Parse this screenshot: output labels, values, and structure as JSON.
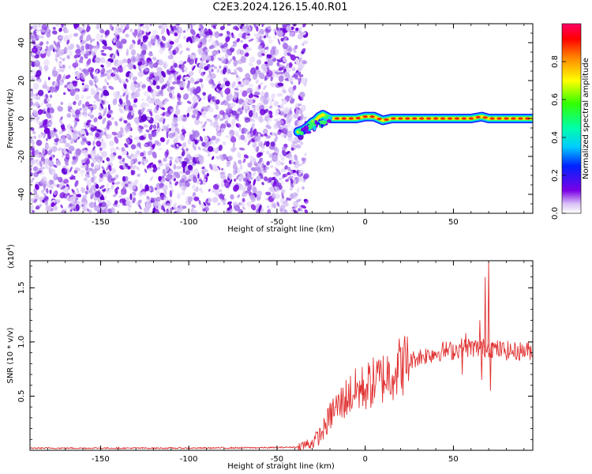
{
  "title": "C2E3.2024.126.15.40.R01",
  "chart_data": [
    {
      "type": "heatmap",
      "xlabel": "Height of straight line (km)",
      "ylabel": "Frequency (Hz)",
      "xlim": [
        -190,
        95
      ],
      "ylim": [
        -50,
        50
      ],
      "xticks": [
        -150,
        -100,
        -50,
        0,
        50
      ],
      "yticks": [
        -40,
        -20,
        0,
        20,
        40
      ],
      "noise_region": [
        -190,
        -36
      ],
      "signal_track": {
        "x": [
          -38,
          -35,
          -32,
          -30,
          -28,
          -26,
          -24,
          -22,
          -20,
          -15,
          -10,
          -5,
          0,
          5,
          10,
          15,
          20,
          30,
          40,
          50,
          60,
          66,
          70,
          80,
          95
        ],
        "y": [
          -7,
          -6,
          -4,
          -2,
          -1,
          1,
          2,
          1,
          0,
          0,
          0,
          0,
          1,
          1,
          -1,
          0,
          0,
          0,
          0,
          0,
          0,
          1,
          0,
          0,
          0
        ]
      },
      "colorbar": {
        "label": "Normalized spectral amplitude",
        "range": [
          0,
          1
        ],
        "ticks": [
          "0.0",
          "0.2",
          "0.4",
          "0.6",
          "0.8"
        ]
      }
    },
    {
      "type": "line",
      "xlabel": "Height of straight line (km)",
      "ylabel": "SNR (10 * v/v)",
      "scale_label": "(x10",
      "scale_exponent": "4",
      "scale_close": ")",
      "xlim": [
        -190,
        95
      ],
      "ylim": [
        0,
        17500
      ],
      "xticks": [
        -150,
        -100,
        -50,
        0,
        50
      ],
      "yticks": [
        5000,
        10000,
        15000
      ],
      "yticklabels": [
        "0.5",
        "1.0",
        "1.5"
      ],
      "color": "#e03030",
      "series": [
        {
          "x": [
            -190,
            -150,
            -100,
            -50,
            -38,
            -30,
            -25,
            -22,
            -20,
            -18,
            -15,
            -12,
            -10,
            -5,
            0,
            5,
            10,
            15,
            20,
            25,
            30,
            35,
            40,
            45,
            50,
            55,
            60,
            65,
            70,
            75,
            80,
            85,
            90,
            95
          ],
          "y": [
            200,
            200,
            200,
            250,
            300,
            700,
            1500,
            2400,
            3100,
            3700,
            4100,
            4600,
            5000,
            5500,
            5800,
            6300,
            6700,
            7200,
            7800,
            8200,
            8600,
            8800,
            9000,
            9200,
            9200,
            9500,
            9500,
            9400,
            9500,
            9300,
            9200,
            9100,
            9200,
            9200
          ]
        }
      ],
      "spikes": {
        "x": [
          55,
          57,
          65,
          66,
          68,
          70,
          71,
          72
        ],
        "y": [
          7000,
          10800,
          12000,
          6500,
          16000,
          17500,
          5500,
          10000
        ]
      }
    }
  ]
}
